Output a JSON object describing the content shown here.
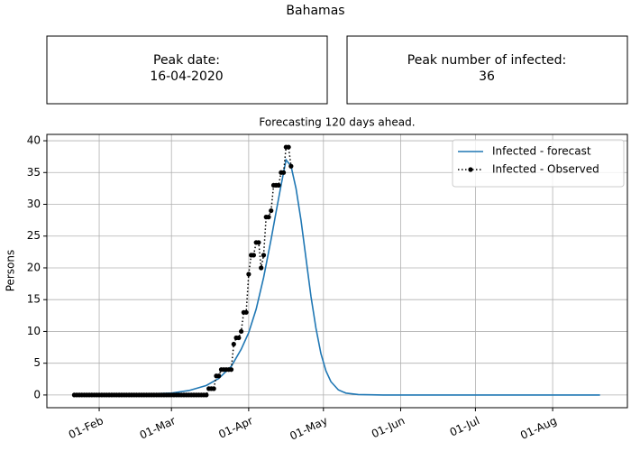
{
  "chart_data": {
    "type": "line",
    "title": "Bahamas",
    "subtitle": "Forecasting 120 days ahead.",
    "annotations": [
      {
        "label": "Peak date:",
        "value": "16-04-2020"
      },
      {
        "label": "Peak number of infected:",
        "value": 36
      }
    ],
    "y_label": "Persons",
    "xlim": [
      "11-Jan",
      "31-Aug"
    ],
    "xticks": [
      "01-Feb",
      "01-Mar",
      "01-Apr",
      "01-May",
      "01-Jun",
      "01-Jul",
      "01-Aug"
    ],
    "ylim": [
      -2,
      41
    ],
    "yticks": [
      0,
      5,
      10,
      15,
      20,
      25,
      30,
      35,
      40
    ],
    "grid": true,
    "legend": "upper right",
    "series": [
      {
        "name": "Infected - forecast",
        "color": "#1f77b4",
        "style": "solid",
        "x": [
          "22-Jan",
          "01-Feb",
          "15-Feb",
          "01-Mar",
          "08-Mar",
          "15-Mar",
          "20-Mar",
          "25-Mar",
          "29-Mar",
          "01-Apr",
          "04-Apr",
          "07-Apr",
          "10-Apr",
          "12-Apr",
          "14-Apr",
          "16-Apr",
          "18-Apr",
          "20-Apr",
          "22-Apr",
          "24-Apr",
          "26-Apr",
          "28-Apr",
          "30-Apr",
          "02-May",
          "04-May",
          "07-May",
          "10-May",
          "15-May",
          "25-May",
          "15-Jun",
          "15-Jul",
          "20-Aug"
        ],
        "values": [
          0,
          0.02,
          0.08,
          0.3,
          0.7,
          1.5,
          2.6,
          4.5,
          7.2,
          9.8,
          13.5,
          18.5,
          24.5,
          28.8,
          33,
          37,
          36,
          32.5,
          27.5,
          21.5,
          15.5,
          10.5,
          6.5,
          3.8,
          2.1,
          0.8,
          0.3,
          0.06,
          0,
          0,
          0,
          0
        ]
      },
      {
        "name": "Infected - Observed",
        "color": "#000000",
        "style": "dotted",
        "x": [
          "22-Jan",
          "23-Jan",
          "24-Jan",
          "25-Jan",
          "26-Jan",
          "27-Jan",
          "28-Jan",
          "29-Jan",
          "30-Jan",
          "31-Jan",
          "01-Feb",
          "02-Feb",
          "03-Feb",
          "04-Feb",
          "05-Feb",
          "06-Feb",
          "07-Feb",
          "08-Feb",
          "09-Feb",
          "10-Feb",
          "11-Feb",
          "12-Feb",
          "13-Feb",
          "14-Feb",
          "15-Feb",
          "16-Feb",
          "17-Feb",
          "18-Feb",
          "19-Feb",
          "20-Feb",
          "21-Feb",
          "22-Feb",
          "23-Feb",
          "24-Feb",
          "25-Feb",
          "26-Feb",
          "27-Feb",
          "28-Feb",
          "29-Feb",
          "01-Mar",
          "02-Mar",
          "03-Mar",
          "04-Mar",
          "05-Mar",
          "06-Mar",
          "07-Mar",
          "08-Mar",
          "09-Mar",
          "10-Mar",
          "11-Mar",
          "12-Mar",
          "13-Mar",
          "14-Mar",
          "15-Mar",
          "16-Mar",
          "17-Mar",
          "18-Mar",
          "19-Mar",
          "20-Mar",
          "21-Mar",
          "22-Mar",
          "23-Mar",
          "24-Mar",
          "25-Mar",
          "26-Mar",
          "27-Mar",
          "28-Mar",
          "29-Mar",
          "30-Mar",
          "31-Mar",
          "01-Apr",
          "02-Apr",
          "03-Apr",
          "04-Apr",
          "05-Apr",
          "06-Apr",
          "07-Apr",
          "08-Apr",
          "09-Apr",
          "10-Apr",
          "11-Apr",
          "12-Apr",
          "13-Apr",
          "14-Apr",
          "15-Apr",
          "16-Apr",
          "17-Apr",
          "18-Apr"
        ],
        "values": [
          0,
          0,
          0,
          0,
          0,
          0,
          0,
          0,
          0,
          0,
          0,
          0,
          0,
          0,
          0,
          0,
          0,
          0,
          0,
          0,
          0,
          0,
          0,
          0,
          0,
          0,
          0,
          0,
          0,
          0,
          0,
          0,
          0,
          0,
          0,
          0,
          0,
          0,
          0,
          0,
          0,
          0,
          0,
          0,
          0,
          0,
          0,
          0,
          0,
          0,
          0,
          0,
          0,
          0,
          1,
          1,
          1,
          3,
          3,
          4,
          4,
          4,
          4,
          4,
          8,
          9,
          9,
          10,
          13,
          13,
          19,
          22,
          22,
          24,
          24,
          20,
          22,
          28,
          28,
          29,
          33,
          33,
          33,
          35,
          35,
          39,
          39,
          36
        ]
      }
    ]
  }
}
